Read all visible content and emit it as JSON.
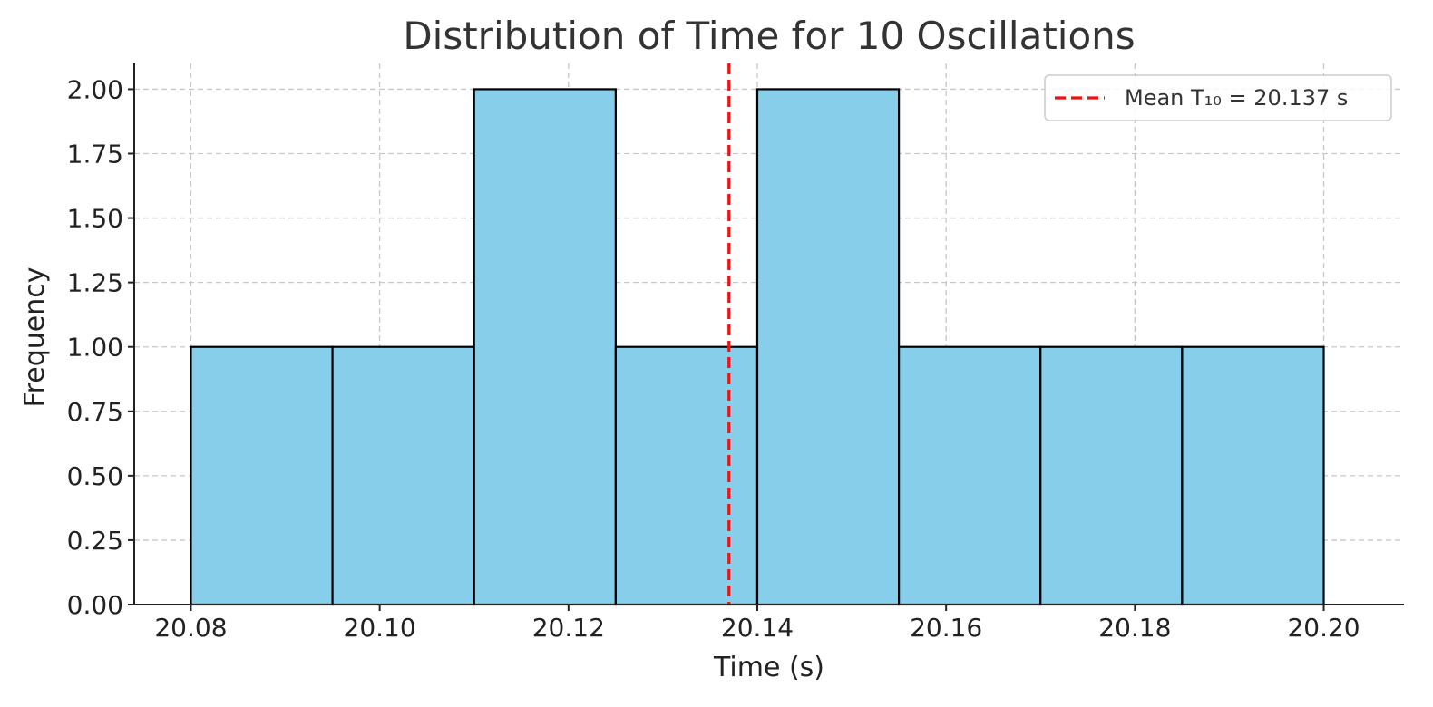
{
  "chart_data": {
    "type": "bar",
    "title": "Distribution of Time for 10 Oscillations",
    "xlabel": "Time (s)",
    "ylabel": "Frequency",
    "bins": [
      {
        "x0": 20.08,
        "x1": 20.095,
        "count": 1
      },
      {
        "x0": 20.095,
        "x1": 20.11,
        "count": 1
      },
      {
        "x0": 20.11,
        "x1": 20.125,
        "count": 2
      },
      {
        "x0": 20.125,
        "x1": 20.14,
        "count": 1
      },
      {
        "x0": 20.14,
        "x1": 20.155,
        "count": 2
      },
      {
        "x0": 20.155,
        "x1": 20.17,
        "count": 1
      },
      {
        "x0": 20.17,
        "x1": 20.185,
        "count": 1
      },
      {
        "x0": 20.185,
        "x1": 20.2,
        "count": 1
      }
    ],
    "xlim": [
      20.074,
      20.2085
    ],
    "ylim": [
      0,
      2.1
    ],
    "xticks": [
      "20.08",
      "20.10",
      "20.12",
      "20.14",
      "20.16",
      "20.18",
      "20.20"
    ],
    "yticks": [
      "0.00",
      "0.25",
      "0.50",
      "0.75",
      "1.00",
      "1.25",
      "1.50",
      "1.75",
      "2.00"
    ],
    "mean": {
      "value": 20.137,
      "label": "Mean T₁₀ = 20.137 s",
      "color": "#ee1111"
    },
    "bar_color": "#87ceeb",
    "edge_color": "#000000",
    "grid": true,
    "legend_position": "upper right"
  }
}
